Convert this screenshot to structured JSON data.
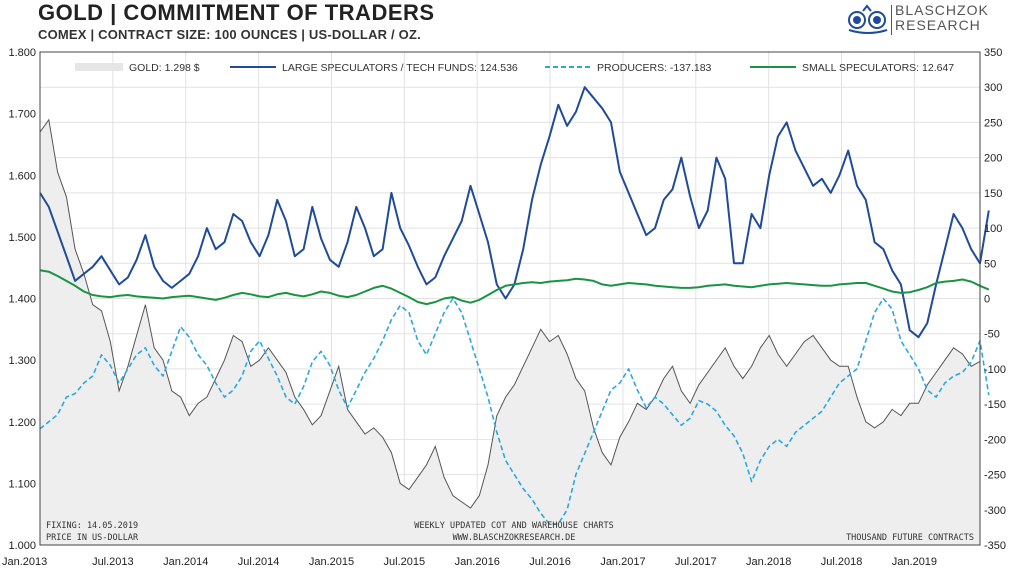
{
  "header": {
    "title": "GOLD | COMMITMENT OF TRADERS",
    "subtitle": "COMEX | CONTRACT SIZE: 100 OUNCES | US-DOLLAR / OZ."
  },
  "logo": {
    "line1": "BLASCHZOK",
    "line2": "RESEARCH"
  },
  "footnotes": {
    "fixing": "FIXING: 14.05.2019",
    "price_unit": "PRICE IN US-DOLLAR",
    "weekly": "WEEKLY UPDATED COT AND WAREHOUSE CHARTS",
    "website": "WWW.BLASCHZOKRESEARCH.DE",
    "thousand": "THOUSAND FUTURE CONTRACTS"
  },
  "chart_data": {
    "type": "line",
    "x_tick_labels": [
      "Jan.2013",
      "Jul.2013",
      "Jan.2014",
      "Jul.2014",
      "Jan.2015",
      "Jul.2015",
      "Jan.2016",
      "Jul.2016",
      "Jan.2017",
      "Jul.2017",
      "Jan.2018",
      "Jul.2018",
      "Jan.2019"
    ],
    "y_left": {
      "ticks": [
        "1.000",
        "1.100",
        "1.200",
        "1.300",
        "1.400",
        "1.500",
        "1.600",
        "1.700",
        "1.800"
      ],
      "range": [
        1000,
        1800
      ]
    },
    "y_right": {
      "ticks": [
        "350",
        "300",
        "250",
        "200",
        "150",
        "100",
        "50",
        "0",
        "-50",
        "-100",
        "-150",
        "-200",
        "-250",
        "-300",
        "-350"
      ],
      "range": [
        -350,
        350
      ]
    },
    "grid": true,
    "legend_position": "top",
    "series": [
      {
        "name": "GOLD: 1.298 $",
        "axis": "left",
        "style": "area",
        "color": "#555555",
        "fill": "#eeeeee",
        "values": [
          1670,
          1690,
          1605,
          1565,
          1480,
          1440,
          1390,
          1380,
          1330,
          1250,
          1290,
          1340,
          1390,
          1320,
          1300,
          1250,
          1240,
          1210,
          1230,
          1240,
          1270,
          1300,
          1340,
          1330,
          1290,
          1300,
          1320,
          1300,
          1280,
          1240,
          1220,
          1195,
          1210,
          1250,
          1290,
          1220,
          1200,
          1180,
          1190,
          1175,
          1150,
          1100,
          1090,
          1110,
          1130,
          1160,
          1110,
          1080,
          1070,
          1060,
          1080,
          1130,
          1210,
          1240,
          1260,
          1290,
          1320,
          1350,
          1330,
          1340,
          1310,
          1270,
          1250,
          1190,
          1150,
          1130,
          1175,
          1200,
          1230,
          1220,
          1240,
          1270,
          1290,
          1250,
          1230,
          1260,
          1280,
          1300,
          1320,
          1290,
          1270,
          1290,
          1320,
          1340,
          1310,
          1290,
          1310,
          1330,
          1340,
          1320,
          1300,
          1290,
          1290,
          1240,
          1200,
          1190,
          1200,
          1220,
          1210,
          1230,
          1230,
          1260,
          1280,
          1300,
          1320,
          1310,
          1290,
          1298
        ]
      },
      {
        "name": "LARGE SPECULATORS / TECH FUNDS: 124.536",
        "axis": "right",
        "style": "line",
        "color": "#1f4b99",
        "values": [
          150,
          130,
          95,
          60,
          25,
          35,
          45,
          60,
          40,
          20,
          30,
          55,
          90,
          45,
          25,
          15,
          25,
          35,
          60,
          100,
          70,
          80,
          120,
          110,
          80,
          60,
          90,
          140,
          110,
          60,
          70,
          130,
          85,
          55,
          45,
          80,
          130,
          100,
          60,
          70,
          150,
          100,
          75,
          45,
          20,
          30,
          60,
          85,
          110,
          160,
          120,
          80,
          20,
          0,
          20,
          70,
          140,
          190,
          230,
          275,
          245,
          265,
          300,
          285,
          270,
          250,
          180,
          150,
          120,
          90,
          100,
          140,
          155,
          200,
          145,
          100,
          125,
          200,
          170,
          50,
          50,
          120,
          100,
          175,
          230,
          250,
          210,
          185,
          160,
          170,
          150,
          175,
          210,
          160,
          140,
          80,
          70,
          40,
          20,
          -45,
          -55,
          -35,
          20,
          70,
          120,
          100,
          70,
          50,
          125
        ]
      },
      {
        "name": "PRODUCERS: -137.183",
        "axis": "right",
        "style": "dashed",
        "color": "#2aa8e0",
        "values": [
          -185,
          -175,
          -165,
          -140,
          -135,
          -120,
          -110,
          -80,
          -95,
          -120,
          -100,
          -80,
          -70,
          -95,
          -110,
          -75,
          -40,
          -55,
          -80,
          -95,
          -120,
          -140,
          -130,
          -110,
          -75,
          -60,
          -85,
          -110,
          -140,
          -150,
          -125,
          -90,
          -75,
          -95,
          -130,
          -155,
          -130,
          -105,
          -85,
          -60,
          -30,
          -10,
          -20,
          -60,
          -80,
          -50,
          -20,
          0,
          -20,
          -60,
          -100,
          -140,
          -190,
          -230,
          -250,
          -270,
          -285,
          -305,
          -320,
          -320,
          -300,
          -250,
          -220,
          -190,
          -160,
          -130,
          -120,
          -100,
          -130,
          -155,
          -140,
          -150,
          -165,
          -180,
          -170,
          -145,
          -150,
          -160,
          -180,
          -195,
          -220,
          -260,
          -230,
          -210,
          -200,
          -210,
          -190,
          -180,
          -170,
          -160,
          -140,
          -120,
          -110,
          -100,
          -60,
          -20,
          0,
          -15,
          -60,
          -80,
          -100,
          -130,
          -140,
          -120,
          -110,
          -105,
          -90,
          -60,
          -137
        ]
      },
      {
        "name": "SMALL SPECULATORS: 12.647",
        "axis": "right",
        "style": "line",
        "color": "#1a9444",
        "values": [
          40,
          38,
          32,
          25,
          18,
          10,
          5,
          3,
          2,
          4,
          5,
          3,
          2,
          1,
          0,
          2,
          3,
          4,
          2,
          0,
          -2,
          1,
          5,
          8,
          6,
          3,
          2,
          6,
          8,
          5,
          3,
          6,
          10,
          8,
          4,
          2,
          5,
          10,
          15,
          18,
          14,
          8,
          2,
          -5,
          -8,
          -5,
          0,
          2,
          -3,
          -6,
          -2,
          5,
          12,
          18,
          20,
          22,
          23,
          22,
          24,
          25,
          26,
          28,
          27,
          25,
          20,
          18,
          20,
          22,
          21,
          20,
          18,
          17,
          16,
          15,
          15,
          16,
          18,
          19,
          20,
          18,
          17,
          16,
          18,
          20,
          21,
          22,
          21,
          20,
          19,
          18,
          18,
          20,
          21,
          22,
          22,
          18,
          14,
          10,
          8,
          9,
          12,
          16,
          22,
          24,
          25,
          27,
          24,
          18,
          12.6
        ]
      }
    ]
  }
}
